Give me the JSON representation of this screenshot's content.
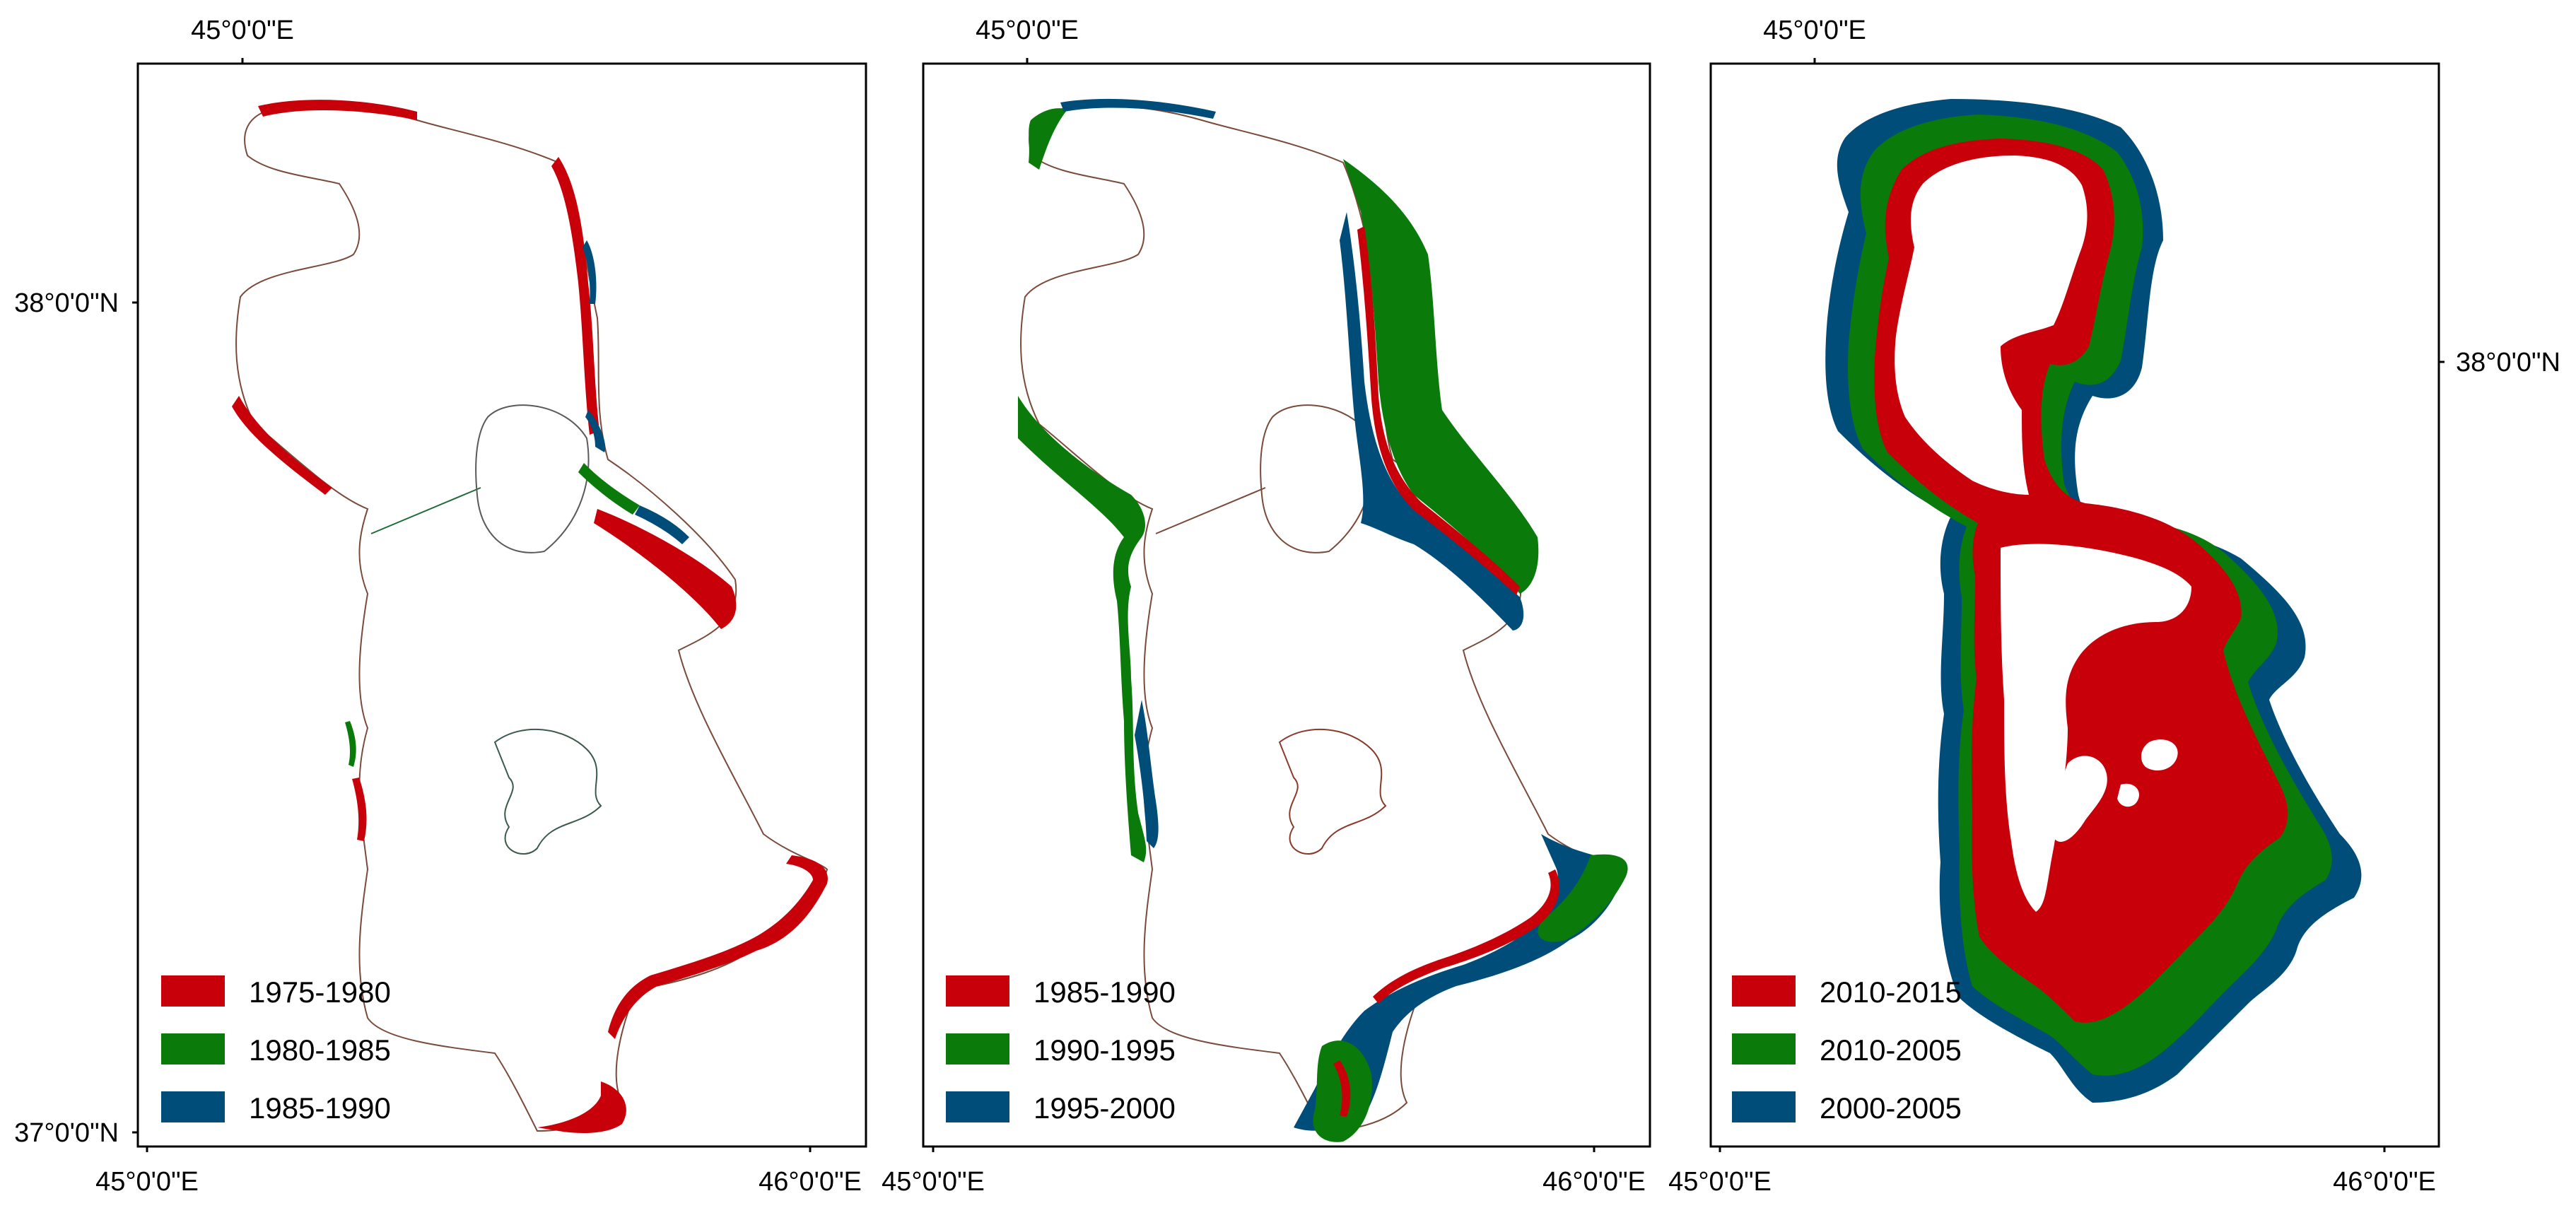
{
  "colors": {
    "red": "#c8000a",
    "green": "#0a7a0a",
    "blue": "#004d7a",
    "frame": "#000000"
  },
  "panels": [
    {
      "top_lon_label": "45°0'0\"E",
      "lat_label_top": "38°0'0\"N",
      "lat_label_bottom": "37°0'0\"N",
      "bottom_lon_left": "45°0'0\"E",
      "bottom_lon_right": "46°0'0\"E",
      "legend": [
        {
          "label": "1975-1980",
          "color": "red"
        },
        {
          "label": "1980-1985",
          "color": "green"
        },
        {
          "label": "1985-1990",
          "color": "blue"
        }
      ]
    },
    {
      "top_lon_label": "45°0'0\"E",
      "bottom_lon_left": "45°0'0\"E",
      "bottom_lon_right": "46°0'0\"E",
      "legend": [
        {
          "label": "1985-1990",
          "color": "red"
        },
        {
          "label": "1990-1995",
          "color": "green"
        },
        {
          "label": "1995-2000",
          "color": "blue"
        }
      ]
    },
    {
      "top_lon_label": "45°0'0\"E",
      "lat_label_right": "38°0'0\"N",
      "bottom_lon_left": "45°0'0\"E",
      "bottom_lon_right": "46°0'0\"E",
      "legend": [
        {
          "label": "2010-2015",
          "color": "red"
        },
        {
          "label": "2010-2005",
          "color": "green"
        },
        {
          "label": "2000-2005",
          "color": "blue"
        }
      ]
    }
  ]
}
